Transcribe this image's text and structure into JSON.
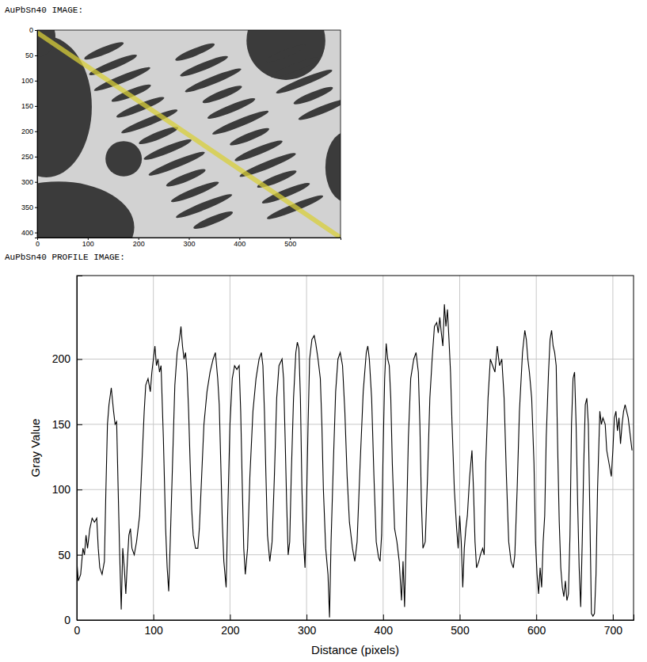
{
  "chart_data": [
    {
      "type": "image",
      "title": "AuPbSn40 IMAGE:",
      "xlim": [
        0,
        600
      ],
      "ylim": [
        410,
        0
      ],
      "xticks": [
        0,
        100,
        200,
        300,
        400,
        500
      ],
      "yticks": [
        0,
        50,
        100,
        150,
        200,
        250,
        300,
        350,
        400
      ],
      "profile_line": {
        "x": [
          0,
          600
        ],
        "y": [
          5,
          410
        ],
        "color": "#d8cf3a"
      }
    },
    {
      "type": "line",
      "title": "AuPbSn40 PROFILE IMAGE:",
      "x_label": "Distance (pixels)",
      "y_label": "Gray Value",
      "xlim": [
        0,
        727
      ],
      "ylim": [
        0,
        264
      ],
      "xticks": [
        0,
        100,
        200,
        300,
        400,
        500,
        600,
        700
      ],
      "yticks": [
        0,
        50,
        100,
        150,
        200
      ],
      "grid": true,
      "x": [
        0,
        2,
        5,
        8,
        10,
        12,
        14,
        17,
        20,
        23,
        26,
        28,
        30,
        33,
        36,
        38,
        40,
        42,
        45,
        48,
        50,
        52,
        54,
        56,
        58,
        60,
        62,
        64,
        66,
        68,
        70,
        72,
        75,
        78,
        82,
        85,
        88,
        90,
        93,
        96,
        98,
        100,
        102,
        104,
        106,
        108,
        110,
        113,
        116,
        118,
        120,
        122,
        125,
        128,
        131,
        134,
        136,
        138,
        140,
        142,
        144,
        146,
        148,
        150,
        152,
        155,
        158,
        160,
        163,
        166,
        170,
        174,
        178,
        181,
        184,
        186,
        188,
        190,
        192,
        195,
        197,
        200,
        203,
        206,
        209,
        212,
        214,
        216,
        218,
        220,
        223,
        226,
        230,
        234,
        238,
        241,
        243,
        245,
        247,
        249,
        252,
        255,
        258,
        261,
        264,
        268,
        270,
        272,
        274,
        276,
        278,
        280,
        283,
        286,
        288,
        290,
        292,
        294,
        296,
        298,
        300,
        302,
        304,
        307,
        310,
        312,
        315,
        318,
        320,
        322,
        325,
        328,
        330,
        332,
        335,
        338,
        341,
        344,
        347,
        350,
        353,
        356,
        360,
        363,
        366,
        370,
        374,
        378,
        380,
        382,
        385,
        388,
        391,
        394,
        396,
        398,
        400,
        402,
        404,
        406,
        408,
        410,
        412,
        415,
        418,
        421,
        424,
        426,
        428,
        430,
        433,
        436,
        440,
        443,
        446,
        448,
        450,
        452,
        455,
        458,
        461,
        464,
        467,
        470,
        472,
        474,
        476,
        478,
        480,
        482,
        484,
        486,
        488,
        490,
        493,
        496,
        498,
        500,
        502,
        504,
        506,
        508,
        510,
        513,
        516,
        518,
        520,
        522,
        525,
        527,
        530,
        532,
        534,
        537,
        540,
        543,
        546,
        549,
        552,
        555,
        558,
        561,
        564,
        567,
        570,
        572,
        575,
        578,
        582,
        585,
        587,
        589,
        591,
        594,
        597,
        599,
        601,
        603,
        605,
        607,
        609,
        611,
        613,
        616,
        618,
        620,
        622,
        624,
        626,
        628,
        630,
        632,
        634,
        636,
        638,
        640,
        642,
        644,
        646,
        648,
        650,
        652,
        654,
        656,
        658,
        660,
        662,
        664,
        666,
        668,
        670,
        672,
        674,
        676,
        678,
        680,
        683,
        685,
        687,
        690,
        692,
        695,
        698,
        700,
        702,
        704,
        706,
        708,
        710,
        712,
        714,
        716,
        718,
        720,
        722,
        725
      ],
      "series": [
        {
          "color": "#000000",
          "values": [
            45,
            30,
            35,
            55,
            50,
            65,
            55,
            70,
            78,
            75,
            78,
            55,
            40,
            35,
            45,
            100,
            150,
            165,
            178,
            160,
            150,
            152,
            100,
            50,
            8,
            55,
            40,
            20,
            45,
            65,
            70,
            55,
            50,
            60,
            80,
            120,
            160,
            180,
            185,
            175,
            190,
            200,
            210,
            195,
            200,
            190,
            195,
            140,
            70,
            40,
            22,
            60,
            120,
            180,
            205,
            215,
            225,
            210,
            200,
            205,
            190,
            160,
            120,
            85,
            65,
            55,
            55,
            70,
            110,
            150,
            175,
            190,
            200,
            205,
            185,
            165,
            120,
            75,
            45,
            25,
            80,
            150,
            185,
            195,
            192,
            195,
            160,
            105,
            55,
            35,
            55,
            110,
            160,
            185,
            200,
            205,
            195,
            160,
            110,
            65,
            45,
            60,
            110,
            170,
            195,
            200,
            185,
            140,
            90,
            50,
            60,
            110,
            170,
            205,
            213,
            208,
            170,
            100,
            60,
            40,
            90,
            150,
            200,
            215,
            218,
            212,
            200,
            185,
            150,
            100,
            55,
            35,
            2,
            60,
            120,
            175,
            200,
            205,
            195,
            160,
            110,
            75,
            55,
            45,
            60,
            120,
            175,
            205,
            210,
            200,
            170,
            110,
            60,
            48,
            45,
            65,
            130,
            185,
            212,
            200,
            195,
            170,
            120,
            70,
            60,
            45,
            15,
            45,
            10,
            60,
            140,
            185,
            200,
            205,
            190,
            150,
            90,
            55,
            60,
            110,
            170,
            200,
            225,
            228,
            220,
            232,
            220,
            210,
            242,
            225,
            238,
            215,
            190,
            150,
            100,
            70,
            55,
            80,
            60,
            25,
            55,
            70,
            80,
            110,
            130,
            100,
            60,
            40,
            45,
            50,
            55,
            50,
            120,
            170,
            200,
            195,
            190,
            210,
            195,
            200,
            170,
            110,
            60,
            45,
            40,
            50,
            100,
            160,
            205,
            222,
            215,
            200,
            190,
            170,
            120,
            60,
            35,
            20,
            40,
            25,
            60,
            80,
            140,
            190,
            215,
            222,
            210,
            205,
            195,
            130,
            75,
            40,
            25,
            18,
            30,
            15,
            20,
            65,
            150,
            185,
            190,
            150,
            90,
            40,
            10,
            60,
            120,
            165,
            170,
            150,
            80,
            5,
            3,
            5,
            35,
            100,
            160,
            150,
            155,
            150,
            130,
            120,
            110,
            130,
            155,
            160,
            145,
            155,
            135,
            150,
            160,
            165,
            160,
            155,
            145,
            130
          ]
        }
      ]
    }
  ]
}
